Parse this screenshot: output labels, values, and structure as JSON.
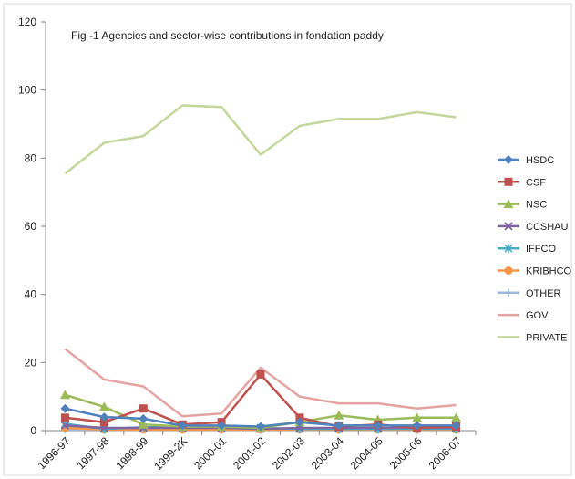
{
  "chart_data": {
    "type": "line",
    "title": "Fig -1 Agencies and sector-wise contributions in fondation paddy",
    "xlabel": "",
    "ylabel": "",
    "ylim": [
      0,
      120
    ],
    "yticks": [
      0,
      20,
      40,
      60,
      80,
      100,
      120
    ],
    "grid": false,
    "legend_position": "right",
    "categories": [
      "1996-97",
      "1997-98",
      "1998-99",
      "1999-2K",
      "2000-01",
      "2001-02",
      "2002-03",
      "2003-04",
      "2004-05",
      "2005-06",
      "2006-07"
    ],
    "series": [
      {
        "name": "HSDC",
        "color": "#4f81bd",
        "marker": "diamond",
        "values": [
          6.5,
          4,
          3.5,
          1.5,
          1.5,
          1.2,
          2.5,
          1.5,
          1.5,
          1.5,
          1.5
        ]
      },
      {
        "name": "CSF",
        "color": "#c0504d",
        "marker": "square",
        "values": [
          3.8,
          2.5,
          6.5,
          1.8,
          2.5,
          16.5,
          3.8,
          1.2,
          1.8,
          0.8,
          1.2
        ]
      },
      {
        "name": "NSC",
        "color": "#9bbb59",
        "marker": "triangle",
        "values": [
          10.5,
          7,
          1.8,
          1.2,
          1.2,
          0.8,
          2.5,
          4.5,
          3.2,
          3.8,
          3.8
        ]
      },
      {
        "name": "CCSHAU",
        "color": "#8064a2",
        "marker": "x",
        "values": [
          1.5,
          0.8,
          0.8,
          0.8,
          0.8,
          0.5,
          0.8,
          0.8,
          0.8,
          0.8,
          0.8
        ]
      },
      {
        "name": "IFFCO",
        "color": "#4bacc6",
        "marker": "star",
        "values": [
          2,
          0.5,
          1,
          1,
          1,
          0.8,
          0.5,
          0.5,
          0.5,
          0.5,
          0.5
        ]
      },
      {
        "name": "KRIBHCO",
        "color": "#f79646",
        "marker": "circle",
        "values": [
          0.8,
          0.3,
          0.3,
          0.3,
          0.3,
          0.3,
          0.3,
          0.3,
          0.3,
          0.3,
          0.3
        ]
      },
      {
        "name": "OTHER",
        "color": "#9db8da",
        "marker": "plus",
        "values": [
          0.3,
          0.3,
          0.3,
          0.3,
          0.3,
          0.3,
          0.3,
          0.3,
          0.3,
          0.3,
          0.3
        ]
      },
      {
        "name": "GOV.",
        "color": "#e3a3a1",
        "marker": "none",
        "values": [
          24,
          15,
          13,
          4.2,
          5,
          18.5,
          10,
          8,
          8,
          6.5,
          7.5
        ]
      },
      {
        "name": "PRIVATE",
        "color": "#c3d69b",
        "marker": "none",
        "values": [
          75.5,
          84.5,
          86.5,
          95.5,
          95,
          81,
          89.5,
          91.5,
          91.5,
          93.5,
          92
        ]
      }
    ]
  }
}
